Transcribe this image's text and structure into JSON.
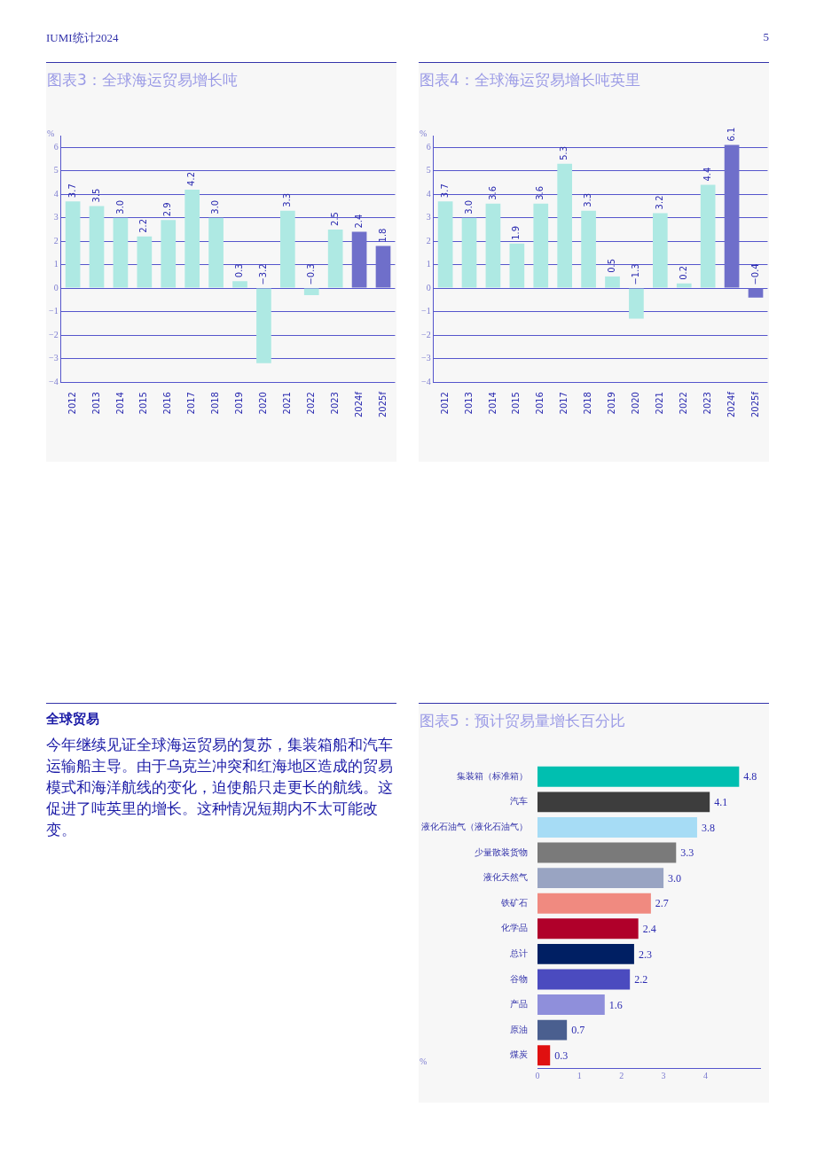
{
  "chart_data": [
    {
      "type": "other",
      "annotations": [
        "IUMI统计2024",
        "5"
      ]
    },
    {
      "type": "bar",
      "title": "图表3：全球海运贸易增长吨",
      "ylabel": "%",
      "categories": [
        "2012",
        "2013",
        "2014",
        "2015",
        "2016",
        "2017",
        "2018",
        "2019",
        "2020",
        "2021",
        "2022",
        "2023",
        "2024f",
        "2025f"
      ],
      "values": [
        3.7,
        3.5,
        3.0,
        2.2,
        2.9,
        4.2,
        3.0,
        0.3,
        -3.2,
        3.3,
        -0.3,
        2.5,
        2.4,
        1.8
      ],
      "value_labels": [
        "3.7",
        "3.5",
        "3.0",
        "2.2",
        "2.9",
        "4.2",
        "3.0",
        "0.3",
        "−3.2",
        "3.3",
        "−0.3",
        "2.5",
        "2.4",
        "1.8"
      ],
      "colors": [
        "#aee9e3",
        "#aee9e3",
        "#aee9e3",
        "#aee9e3",
        "#aee9e3",
        "#aee9e3",
        "#aee9e3",
        "#aee9e3",
        "#aee9e3",
        "#aee9e3",
        "#aee9e3",
        "#aee9e3",
        "#6f6fca",
        "#6f6fca"
      ],
      "ylim": [
        -4,
        6.5
      ],
      "yticks": [
        {
          "value": -4,
          "label": "−4"
        },
        {
          "value": -3,
          "label": "−3"
        },
        {
          "value": -2,
          "label": "−2"
        },
        {
          "value": -1,
          "label": "−1"
        },
        0,
        1,
        2,
        3,
        4,
        5,
        6
      ],
      "grid": "y"
    },
    {
      "type": "bar",
      "title": "图表4：全球海运贸易增长吨英里",
      "ylabel": "%",
      "categories": [
        "2012",
        "2013",
        "2014",
        "2015",
        "2016",
        "2017",
        "2018",
        "2019",
        "2020",
        "2021",
        "2022",
        "2023",
        "2024f",
        "2025f"
      ],
      "values": [
        3.7,
        3.0,
        3.6,
        1.9,
        3.6,
        5.3,
        3.3,
        0.5,
        -1.3,
        3.2,
        0.2,
        4.4,
        6.1,
        -0.4
      ],
      "value_labels": [
        "3.7",
        "3.0",
        "3.6",
        "1.9",
        "3.6",
        "5.3",
        "3.3",
        "0.5",
        "−1.3",
        "3.2",
        "0.2",
        "4.4",
        "6.1",
        "−0.4"
      ],
      "colors": [
        "#aee9e3",
        "#aee9e3",
        "#aee9e3",
        "#aee9e3",
        "#aee9e3",
        "#aee9e3",
        "#aee9e3",
        "#aee9e3",
        "#aee9e3",
        "#aee9e3",
        "#aee9e3",
        "#aee9e3",
        "#6f6fca",
        "#6f6fca"
      ],
      "ylim": [
        -4,
        6.5
      ],
      "yticks": [
        {
          "value": -4,
          "label": "−4"
        },
        {
          "value": -3,
          "label": "−3"
        },
        {
          "value": -2,
          "label": "−2"
        },
        {
          "value": -1,
          "label": "−1"
        },
        0,
        1,
        2,
        3,
        4,
        5,
        6
      ],
      "grid": "y"
    },
    {
      "type": "other",
      "title": "全球贸易",
      "annotations": [
        "今年继续见证全球海运贸易的复苏，集装箱船和汽车运输船主导。由于乌克兰冲突和红海地区造成的贸易模式和海洋航线的变化，迫使船只走更长的航线。这促进了吨英里的增长。这种情况短期内不太可能改变。"
      ]
    },
    {
      "type": "bar",
      "orientation": "horizontal",
      "title": "图表5：预计贸易量增长百分比",
      "xlabel": "%",
      "categories": [
        "集装箱（标准箱）",
        "汽车",
        "液化石油气（液化石油气）",
        "少量散装货物",
        "液化天然气",
        "铁矿石",
        "化学品",
        "总计",
        "谷物",
        "产品",
        "原油",
        "煤炭"
      ],
      "values": [
        4.8,
        4.1,
        3.8,
        3.3,
        3.0,
        2.7,
        2.4,
        2.3,
        2.2,
        1.6,
        0.7,
        0.3
      ],
      "value_labels": [
        "4.8",
        "4.1",
        "3.8",
        "3.3",
        "3.0",
        "2.7",
        "2.4",
        "2.3",
        "2.2",
        "1.6",
        "0.7",
        "0.3"
      ],
      "colors": [
        "#00bfb0",
        "#3d3d3d",
        "#a6dcf5",
        "#7a7a7a",
        "#99a4c2",
        "#f08a80",
        "#b0002a",
        "#001f63",
        "#4b4bbf",
        "#8f8fdb",
        "#4a5f8f",
        "#e01010"
      ],
      "xlim": [
        0,
        5.3
      ],
      "xticks": [
        0,
        1,
        2,
        3,
        4
      ],
      "grid": false
    }
  ]
}
